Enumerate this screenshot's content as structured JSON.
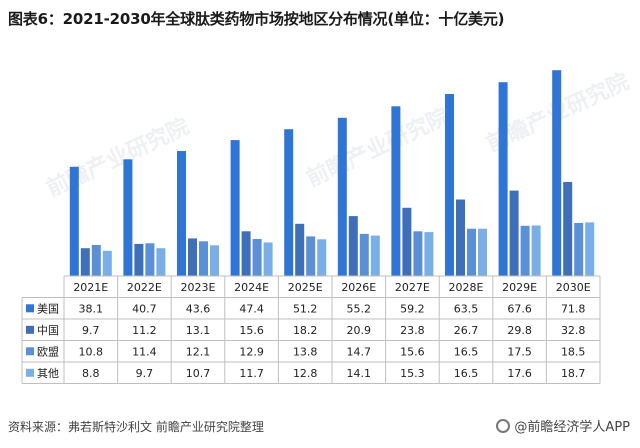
{
  "title": "图表6：2021-2030年全球肽类药物市场按地区分布情况(单位：十亿美元)",
  "source": "资料来源：弗若斯特沙利文 前瞻产业研究院整理",
  "brand": "@前瞻经济学人APP",
  "watermark": "前瞻产业研究院",
  "colors": {
    "series": [
      "#2e75d6",
      "#3f6fb8",
      "#5b8fd6",
      "#7aaee6"
    ],
    "grid": "#bfbfbf",
    "table_text": "#222222"
  },
  "chart_data": {
    "type": "bar",
    "categories": [
      "2021E",
      "2022E",
      "2023E",
      "2024E",
      "2025E",
      "2026E",
      "2027E",
      "2028E",
      "2029E",
      "2030E"
    ],
    "series": [
      {
        "name": "美国",
        "values": [
          38.1,
          40.7,
          43.6,
          47.4,
          51.2,
          55.2,
          59.2,
          63.5,
          67.6,
          71.8
        ]
      },
      {
        "name": "中国",
        "values": [
          9.7,
          11.2,
          13.1,
          15.6,
          18.2,
          20.9,
          23.8,
          26.7,
          29.8,
          32.8
        ]
      },
      {
        "name": "欧盟",
        "values": [
          10.8,
          11.4,
          12.1,
          12.9,
          13.8,
          14.7,
          15.6,
          16.5,
          17.5,
          18.5
        ]
      },
      {
        "name": "其他",
        "values": [
          8.8,
          9.7,
          10.7,
          11.7,
          12.8,
          14.1,
          15.3,
          16.5,
          17.6,
          18.7
        ]
      }
    ],
    "ylim": [
      0,
      75
    ],
    "legend": "table-left"
  }
}
